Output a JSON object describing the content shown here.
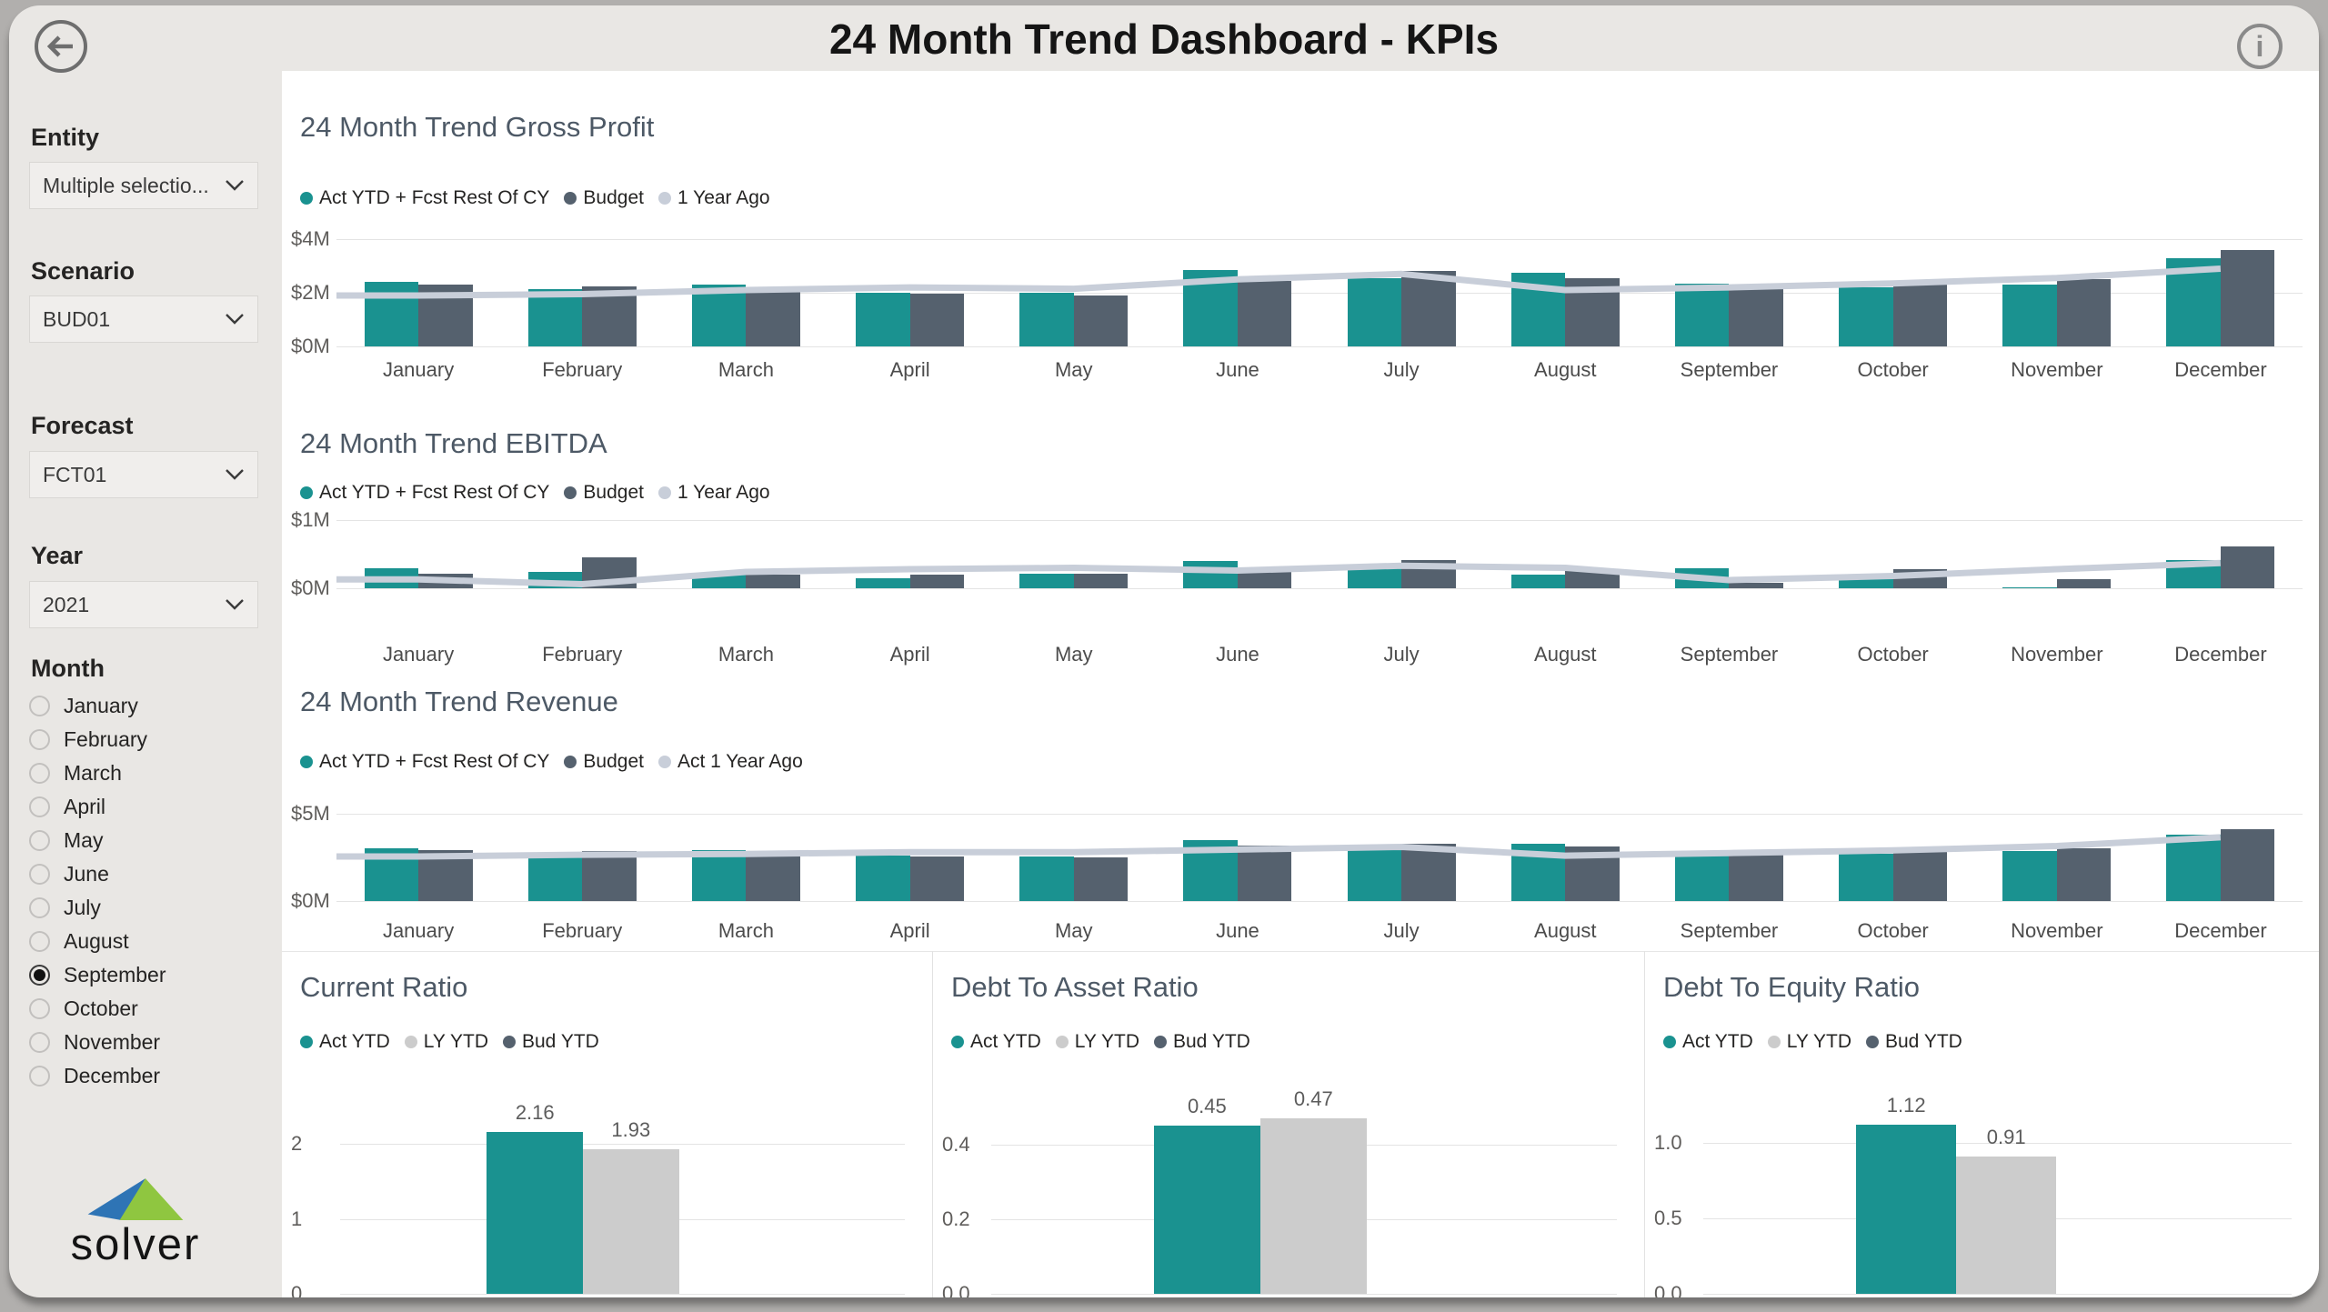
{
  "header": {
    "title": "24 Month Trend Dashboard - KPIs",
    "back_icon": "arrow-left",
    "info_icon": "i"
  },
  "sidebar": {
    "filters": [
      {
        "label": "Entity",
        "value": "Multiple selectio..."
      },
      {
        "label": "Scenario",
        "value": "BUD01"
      },
      {
        "label": "Forecast",
        "value": "FCT01"
      },
      {
        "label": "Year",
        "value": "2021"
      }
    ],
    "month": {
      "label": "Month",
      "options": [
        "January",
        "February",
        "March",
        "April",
        "May",
        "June",
        "July",
        "August",
        "September",
        "October",
        "November",
        "December"
      ],
      "selected": "September"
    },
    "logo_text": "solver"
  },
  "colors": {
    "teal": "#1a9290",
    "slate": "#55616e",
    "light_line": "#c8ced9",
    "light_bar": "#cccccc",
    "panel_gray": "#e9e7e4",
    "title_text": "#4d5966"
  },
  "chart_data": [
    {
      "kind": "trend",
      "type": "bar",
      "title": "24 Month Trend Gross Profit",
      "y_axis": {
        "ticks": [
          0,
          2,
          4
        ],
        "labels": [
          "$0M",
          "$2M",
          "$4M"
        ],
        "max": 4,
        "unit": "$M"
      },
      "legend": [
        {
          "label": "Act YTD + Fcst Rest Of CY",
          "color": "#1a9290"
        },
        {
          "label": "Budget",
          "color": "#55616e"
        },
        {
          "label": "1 Year Ago",
          "color": "#c8ced9"
        }
      ],
      "categories": [
        "January",
        "February",
        "March",
        "April",
        "May",
        "June",
        "July",
        "August",
        "September",
        "October",
        "November",
        "December"
      ],
      "series": [
        {
          "name": "Act YTD + Fcst Rest Of CY",
          "type": "bar",
          "color": "#1a9290",
          "values": [
            2.4,
            2.15,
            2.3,
            2.0,
            2.0,
            2.85,
            2.55,
            2.75,
            2.35,
            2.2,
            2.3,
            3.3
          ]
        },
        {
          "name": "Budget",
          "type": "bar",
          "color": "#55616e",
          "values": [
            2.3,
            2.25,
            2.05,
            1.95,
            1.9,
            2.45,
            2.8,
            2.55,
            2.2,
            2.35,
            2.5,
            3.6
          ]
        },
        {
          "name": "1 Year Ago",
          "type": "line",
          "color": "#c8ced9",
          "values": [
            1.9,
            1.95,
            2.1,
            2.2,
            2.15,
            2.5,
            2.7,
            2.1,
            2.2,
            2.35,
            2.55,
            2.9
          ]
        }
      ]
    },
    {
      "kind": "trend",
      "type": "bar",
      "title": "24 Month Trend EBITDA",
      "y_axis": {
        "ticks": [
          0,
          1
        ],
        "labels": [
          "$0M",
          "$1M"
        ],
        "max": 1,
        "unit": "$M"
      },
      "legend": [
        {
          "label": "Act YTD + Fcst Rest Of CY",
          "color": "#1a9290"
        },
        {
          "label": "Budget",
          "color": "#55616e"
        },
        {
          "label": "1 Year Ago",
          "color": "#c8ced9"
        }
      ],
      "categories": [
        "January",
        "February",
        "March",
        "April",
        "May",
        "June",
        "July",
        "August",
        "September",
        "October",
        "November",
        "December"
      ],
      "series": [
        {
          "name": "Act YTD + Fcst Rest Of CY",
          "type": "bar",
          "color": "#1a9290",
          "values": [
            0.3,
            0.24,
            0.2,
            0.15,
            0.22,
            0.4,
            0.32,
            0.2,
            0.3,
            0.13,
            0.02,
            0.42
          ]
        },
        {
          "name": "Budget",
          "type": "bar",
          "color": "#55616e",
          "values": [
            0.22,
            0.45,
            0.2,
            0.2,
            0.22,
            0.28,
            0.42,
            0.28,
            0.08,
            0.28,
            0.13,
            0.62
          ]
        },
        {
          "name": "1 Year Ago",
          "type": "line",
          "color": "#c8ced9",
          "values": [
            0.13,
            0.06,
            0.24,
            0.28,
            0.3,
            0.26,
            0.33,
            0.3,
            0.12,
            0.18,
            0.28,
            0.37
          ]
        }
      ]
    },
    {
      "kind": "trend",
      "type": "bar",
      "title": "24 Month Trend Revenue",
      "y_axis": {
        "ticks": [
          0,
          5
        ],
        "labels": [
          "$0M",
          "$5M"
        ],
        "max": 5,
        "unit": "$M"
      },
      "legend": [
        {
          "label": "Act YTD + Fcst Rest Of CY",
          "color": "#1a9290"
        },
        {
          "label": "Budget",
          "color": "#55616e"
        },
        {
          "label": "Act 1 Year Ago",
          "color": "#c8ced9"
        }
      ],
      "categories": [
        "January",
        "February",
        "March",
        "April",
        "May",
        "June",
        "July",
        "August",
        "September",
        "October",
        "November",
        "December"
      ],
      "series": [
        {
          "name": "Act YTD + Fcst Rest Of CY",
          "type": "bar",
          "color": "#1a9290",
          "values": [
            3.0,
            2.75,
            2.9,
            2.6,
            2.55,
            3.5,
            3.05,
            3.3,
            2.85,
            2.7,
            2.85,
            3.8
          ]
        },
        {
          "name": "Budget",
          "type": "bar",
          "color": "#55616e",
          "values": [
            2.9,
            2.85,
            2.6,
            2.55,
            2.5,
            3.2,
            3.3,
            3.1,
            2.7,
            2.85,
            3.0,
            4.1
          ]
        },
        {
          "name": "Act 1 Year Ago",
          "type": "line",
          "color": "#c8ced9",
          "values": [
            2.55,
            2.65,
            2.7,
            2.8,
            2.8,
            2.95,
            3.1,
            2.6,
            2.75,
            2.9,
            3.15,
            3.65
          ]
        }
      ]
    },
    {
      "kind": "kpi",
      "type": "bar",
      "title": "Current Ratio",
      "y_axis": {
        "ticks": [
          0,
          1,
          2
        ],
        "labels": [
          "0",
          "1",
          "2"
        ],
        "max": 2.4
      },
      "legend": [
        {
          "label": "Act YTD",
          "color": "#1a9290"
        },
        {
          "label": "LY YTD",
          "color": "#cccccc"
        },
        {
          "label": "Bud YTD",
          "color": "#55616e"
        }
      ],
      "bars": [
        {
          "name": "Act YTD",
          "color": "#1a9290",
          "value": 2.16,
          "label": "2.16"
        },
        {
          "name": "LY YTD",
          "color": "#cccccc",
          "value": 1.93,
          "label": "1.93"
        }
      ]
    },
    {
      "kind": "kpi",
      "type": "bar",
      "title": "Debt To Asset Ratio",
      "y_axis": {
        "ticks": [
          0,
          0.2,
          0.4
        ],
        "labels": [
          "0.0",
          "0.2",
          "0.4"
        ],
        "max": 0.55
      },
      "legend": [
        {
          "label": "Act YTD",
          "color": "#1a9290"
        },
        {
          "label": "LY YTD",
          "color": "#cccccc"
        },
        {
          "label": "Bud YTD",
          "color": "#55616e"
        }
      ],
      "bars": [
        {
          "name": "Act YTD",
          "color": "#1a9290",
          "value": 0.45,
          "label": "0.45"
        },
        {
          "name": "LY YTD",
          "color": "#cccccc",
          "value": 0.47,
          "label": "0.47"
        }
      ]
    },
    {
      "kind": "kpi",
      "type": "bar",
      "title": "Debt To Equity Ratio",
      "y_axis": {
        "ticks": [
          0,
          0.5,
          1
        ],
        "labels": [
          "0.0",
          "0.5",
          "1.0"
        ],
        "max": 1.3
      },
      "legend": [
        {
          "label": "Act YTD",
          "color": "#1a9290"
        },
        {
          "label": "LY YTD",
          "color": "#cccccc"
        },
        {
          "label": "Bud YTD",
          "color": "#55616e"
        }
      ],
      "bars": [
        {
          "name": "Act YTD",
          "color": "#1a9290",
          "value": 1.12,
          "label": "1.12"
        },
        {
          "name": "LY YTD",
          "color": "#cccccc",
          "value": 0.91,
          "label": "0.91"
        }
      ]
    }
  ]
}
